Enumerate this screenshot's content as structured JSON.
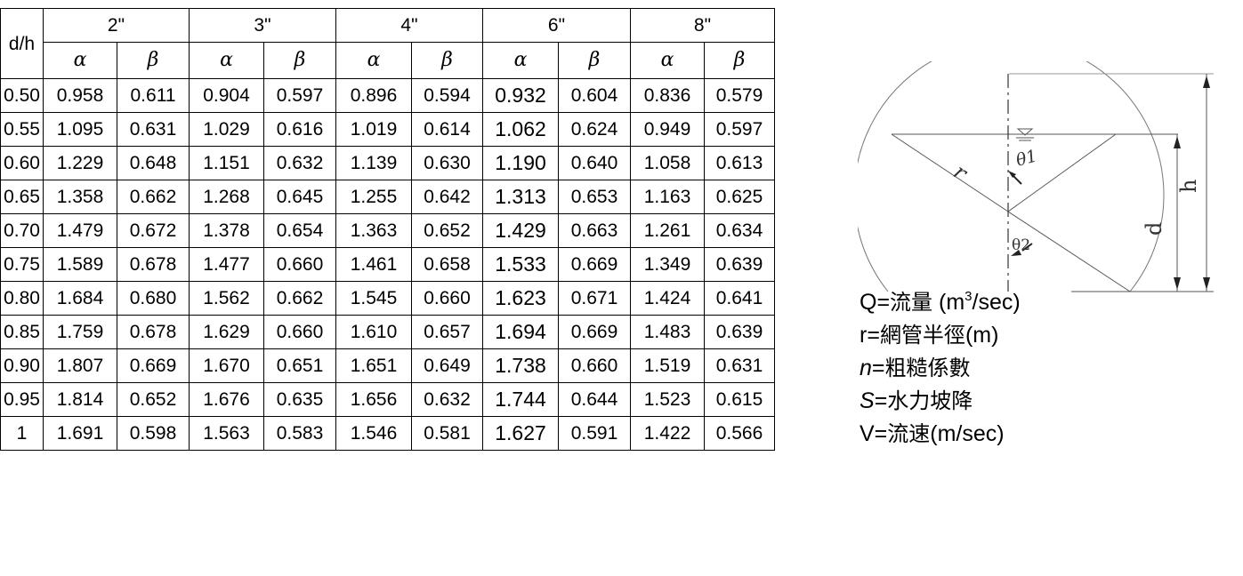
{
  "table": {
    "corner": "d/h",
    "pipe_sizes": [
      "2\"",
      "3\"",
      "4\"",
      "6\"",
      "8\""
    ],
    "sub_headers": [
      "α",
      "β",
      "α",
      "β",
      "α",
      "β",
      "α",
      "β",
      "α",
      "β"
    ],
    "rows": [
      {
        "dh": "0.50",
        "values": [
          "0.958",
          "0.611",
          "0.904",
          "0.597",
          "0.896",
          "0.594",
          "0.932",
          "0.604",
          "0.836",
          "0.579"
        ]
      },
      {
        "dh": "0.55",
        "values": [
          "1.095",
          "0.631",
          "1.029",
          "0.616",
          "1.019",
          "0.614",
          "1.062",
          "0.624",
          "0.949",
          "0.597"
        ]
      },
      {
        "dh": "0.60",
        "values": [
          "1.229",
          "0.648",
          "1.151",
          "0.632",
          "1.139",
          "0.630",
          "1.190",
          "0.640",
          "1.058",
          "0.613"
        ]
      },
      {
        "dh": "0.65",
        "values": [
          "1.358",
          "0.662",
          "1.268",
          "0.645",
          "1.255",
          "0.642",
          "1.313",
          "0.653",
          "1.163",
          "0.625"
        ]
      },
      {
        "dh": "0.70",
        "values": [
          "1.479",
          "0.672",
          "1.378",
          "0.654",
          "1.363",
          "0.652",
          "1.429",
          "0.663",
          "1.261",
          "0.634"
        ]
      },
      {
        "dh": "0.75",
        "values": [
          "1.589",
          "0.678",
          "1.477",
          "0.660",
          "1.461",
          "0.658",
          "1.533",
          "0.669",
          "1.349",
          "0.639"
        ]
      },
      {
        "dh": "0.80",
        "values": [
          "1.684",
          "0.680",
          "1.562",
          "0.662",
          "1.545",
          "0.660",
          "1.623",
          "0.671",
          "1.424",
          "0.641"
        ]
      },
      {
        "dh": "0.85",
        "values": [
          "1.759",
          "0.678",
          "1.629",
          "0.660",
          "1.610",
          "0.657",
          "1.694",
          "0.669",
          "1.483",
          "0.639"
        ]
      },
      {
        "dh": "0.90",
        "values": [
          "1.807",
          "0.669",
          "1.670",
          "0.651",
          "1.651",
          "0.649",
          "1.738",
          "0.660",
          "1.519",
          "0.631"
        ]
      },
      {
        "dh": "0.95",
        "values": [
          "1.814",
          "0.652",
          "1.676",
          "0.635",
          "1.656",
          "0.632",
          "1.744",
          "0.644",
          "1.523",
          "0.615"
        ]
      },
      {
        "dh": "1",
        "values": [
          "1.691",
          "0.598",
          "1.563",
          "0.583",
          "1.546",
          "0.581",
          "1.627",
          "0.591",
          "1.422",
          "0.566"
        ]
      }
    ]
  },
  "diagram": {
    "label_r": "r",
    "label_theta1": "θ1",
    "label_theta2": "θ2",
    "label_d": "d",
    "label_h": "h"
  },
  "legend": {
    "q_prefix": "Q=",
    "q_text": "流量",
    "q_unit_a": " (m",
    "q_unit_sup": "3",
    "q_unit_b": "/sec)",
    "r_prefix": "r=",
    "r_text": "網管半徑",
    "r_unit": "(m)",
    "n_sym": "n",
    "n_eq": "=",
    "n_text": "粗糙係數",
    "s_sym": "S",
    "s_eq": "=",
    "s_text": "水力坡降",
    "v_prefix": "V=",
    "v_text": "流速",
    "v_unit": "(m/sec)"
  }
}
